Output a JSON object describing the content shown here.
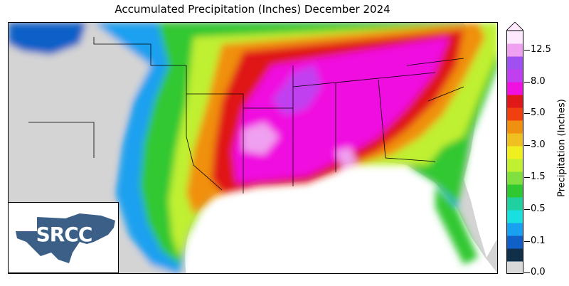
{
  "title": "Accumulated Precipitation (Inches) December 2024",
  "colorbar": {
    "label": "Precipitation (Inches)",
    "ticks": [
      "0.0",
      "0.1",
      "0.5",
      "1.5",
      "3.0",
      "5.0",
      "8.0",
      "12.5"
    ],
    "colors": [
      "#d9d9d9",
      "#10304a",
      "#1060c8",
      "#1aa0f0",
      "#18e0e0",
      "#20d0a0",
      "#30c830",
      "#80e040",
      "#c0f030",
      "#f0f020",
      "#f0c020",
      "#f09010",
      "#f04010",
      "#e01818",
      "#f010e0",
      "#c040f0",
      "#a050f0",
      "#f0a0f0",
      "#fde8fd"
    ],
    "extend": "max"
  },
  "logo": {
    "text": "SRCC"
  }
}
